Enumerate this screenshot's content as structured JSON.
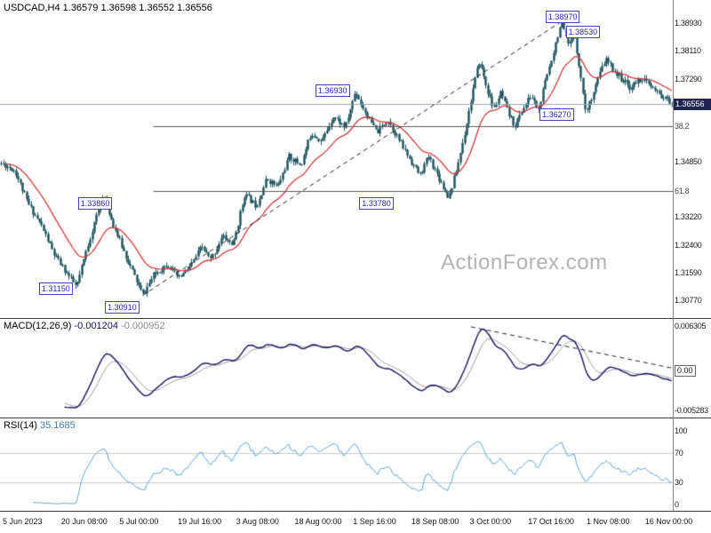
{
  "watermark": "ActionForex.com",
  "colors": {
    "candle": "#17505b",
    "ma": "#d23a3a",
    "macd": "#14145e",
    "signal": "#9c9c9c",
    "rsi": "#58a6d8",
    "rsi_level": "#c8c8c8",
    "fib_line": "#5a5a5a",
    "trend": "#222222",
    "bid_line": "#9aa4b0",
    "pivot_text": "#2525a8",
    "current_bg": "#20264f",
    "watermark": "#b3b3b3"
  },
  "chart_data": {
    "type": "candlestick",
    "symbol": "USDCAD,H4",
    "quote": {
      "open": "1.36579",
      "high": "1.36598",
      "low": "1.36552",
      "close": "1.36556"
    },
    "price": {
      "range": [
        1.304,
        1.394
      ],
      "y_ticks": [
        "1.38930",
        "1.38110",
        "1.37290",
        "1.36480",
        "1.34850",
        "1.33220",
        "1.32400",
        "1.31590",
        "1.30770"
      ],
      "current": {
        "label": "1.36556",
        "value": 1.36556
      },
      "fib_levels": [
        {
          "label": "38.2",
          "value": 1.359
        },
        {
          "label": "61.8",
          "value": 1.3399
        }
      ],
      "fib_x_start": 0.228,
      "pivots": [
        {
          "label": "1.38970",
          "value": 1.3897,
          "x": 0.811,
          "px": 0.835,
          "kind": "high",
          "dy": -12
        },
        {
          "label": "1.38530",
          "value": 1.3853,
          "x": 0.841,
          "px": 0.855,
          "kind": "high",
          "dy": -12
        },
        {
          "label": "1.36930",
          "value": 1.3693,
          "x": 0.469,
          "px": 0.528,
          "kind": "high",
          "dy": -7
        },
        {
          "label": "1.36270",
          "value": 1.3627,
          "x": 0.802,
          "px": 0.872,
          "kind": "low",
          "dy": -6
        },
        {
          "label": "1.33860",
          "value": 1.3386,
          "x": 0.116,
          "px": 0.152,
          "kind": "high",
          "dy": 2
        },
        {
          "label": "1.33780",
          "value": 1.3378,
          "x": 0.534,
          "px": 0.667,
          "kind": "low",
          "dy": -1
        },
        {
          "label": "1.31150",
          "value": 1.3115,
          "x": 0.058,
          "px": 0.112,
          "kind": "low",
          "dy": -5
        },
        {
          "label": "1.30910",
          "value": 1.3091,
          "x": 0.156,
          "px": 0.211,
          "kind": "low",
          "dy": 6
        }
      ],
      "trendline": {
        "x1": 0.212,
        "v1": 1.3091,
        "x2": 0.834,
        "v2": 1.3897
      },
      "waypoints": [
        [
          0.0,
          1.348
        ],
        [
          0.02,
          1.346
        ],
        [
          0.04,
          1.336
        ],
        [
          0.059,
          1.33
        ],
        [
          0.079,
          1.321
        ],
        [
          0.112,
          1.3115
        ],
        [
          0.132,
          1.326
        ],
        [
          0.152,
          1.3386
        ],
        [
          0.165,
          1.331
        ],
        [
          0.185,
          1.321
        ],
        [
          0.211,
          1.3091
        ],
        [
          0.227,
          1.315
        ],
        [
          0.248,
          1.3185
        ],
        [
          0.264,
          1.314
        ],
        [
          0.283,
          1.318
        ],
        [
          0.299,
          1.3235
        ],
        [
          0.312,
          1.3195
        ],
        [
          0.33,
          1.3265
        ],
        [
          0.346,
          1.324
        ],
        [
          0.363,
          1.339
        ],
        [
          0.38,
          1.3355
        ],
        [
          0.396,
          1.3435
        ],
        [
          0.412,
          1.341
        ],
        [
          0.429,
          1.35
        ],
        [
          0.447,
          1.3475
        ],
        [
          0.462,
          1.357
        ],
        [
          0.478,
          1.3545
        ],
        [
          0.495,
          1.362
        ],
        [
          0.513,
          1.3585
        ],
        [
          0.528,
          1.3693
        ],
        [
          0.544,
          1.3625
        ],
        [
          0.56,
          1.357
        ],
        [
          0.576,
          1.361
        ],
        [
          0.594,
          1.3545
        ],
        [
          0.61,
          1.349
        ],
        [
          0.624,
          1.3445
        ],
        [
          0.637,
          1.35
        ],
        [
          0.65,
          1.3448
        ],
        [
          0.667,
          1.3378
        ],
        [
          0.68,
          1.347
        ],
        [
          0.692,
          1.358
        ],
        [
          0.703,
          1.3695
        ],
        [
          0.713,
          1.378
        ],
        [
          0.724,
          1.37
        ],
        [
          0.734,
          1.3638
        ],
        [
          0.745,
          1.3688
        ],
        [
          0.756,
          1.3625
        ],
        [
          0.766,
          1.359
        ],
        [
          0.779,
          1.3645
        ],
        [
          0.79,
          1.368
        ],
        [
          0.801,
          1.3635
        ],
        [
          0.811,
          1.372
        ],
        [
          0.822,
          1.3802
        ],
        [
          0.835,
          1.3897
        ],
        [
          0.845,
          1.3825
        ],
        [
          0.855,
          1.3853
        ],
        [
          0.872,
          1.3627
        ],
        [
          0.885,
          1.3705
        ],
        [
          0.901,
          1.3787
        ],
        [
          0.918,
          1.3742
        ],
        [
          0.938,
          1.3702
        ],
        [
          0.954,
          1.3733
        ],
        [
          0.975,
          1.3692
        ],
        [
          1.0,
          1.36556
        ]
      ]
    },
    "macd": {
      "title": "MACD(12,26,9)",
      "values": [
        "-0.001204",
        "-0.000952"
      ],
      "params": [
        12,
        26,
        9
      ],
      "y_ticks": {
        "top": "0.006305",
        "zero": "0.00",
        "bottom": "-0.005283"
      },
      "trendline": [
        [
          0.7,
          0.08
        ],
        [
          1.0,
          0.5
        ]
      ]
    },
    "rsi": {
      "title": "RSI(14)",
      "value": "35.1685",
      "period": 14,
      "levels": [
        70,
        30
      ],
      "y_ticks": [
        "100",
        "70",
        "30",
        "0"
      ]
    },
    "time_ticks": [
      "5 Jun 2023",
      "20 Jun 08:00",
      "5 Jul 00:00",
      "19 Jul 16:00",
      "3 Aug 08:00",
      "18 Aug 00:00",
      "1 Sep 16:00",
      "18 Sep 08:00",
      "3 Oct 00:00",
      "17 Oct 16:00",
      "1 Nov 08:00",
      "16 Nov 00:00"
    ]
  }
}
